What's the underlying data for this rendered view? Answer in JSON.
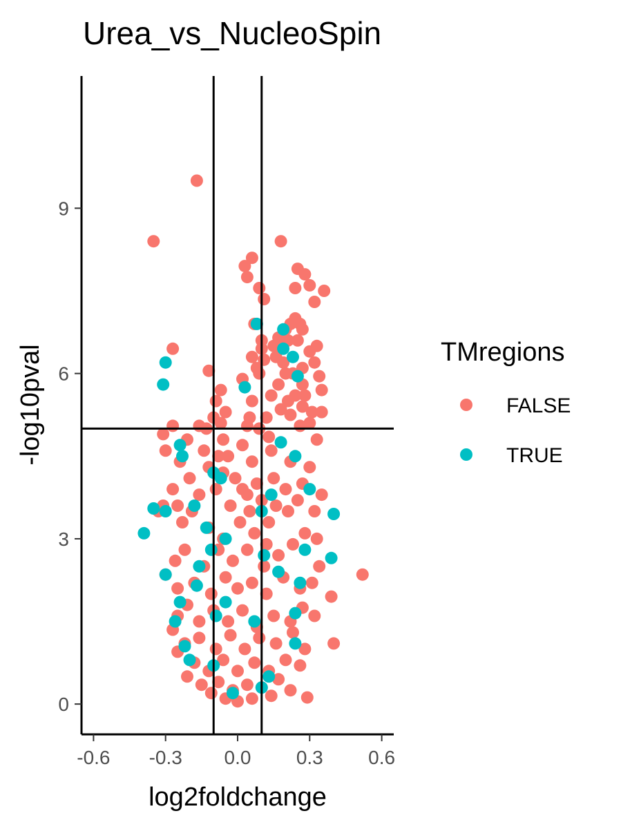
{
  "chart_data": {
    "type": "scatter",
    "title": "Urea_vs_NucleoSpin",
    "xlabel": "log2foldchange",
    "ylabel": "-log10pval",
    "xlim": [
      -0.65,
      0.65
    ],
    "ylim": [
      -0.55,
      11.4
    ],
    "x_ticks": [
      -0.6,
      -0.3,
      0.0,
      0.3,
      0.6
    ],
    "x_tick_labels": [
      "-0.6",
      "-0.3",
      "0.0",
      "0.3",
      "0.6"
    ],
    "y_ticks": [
      0,
      3,
      6,
      9
    ],
    "y_tick_labels": [
      "0",
      "3",
      "6",
      "9"
    ],
    "reference_lines": {
      "vertical": [
        -0.1,
        0.1
      ],
      "horizontal": [
        5
      ]
    },
    "grid": false,
    "legend": {
      "title": "TMregions",
      "placement": "right",
      "entries": [
        {
          "label": "FALSE",
          "color": "#F8766D"
        },
        {
          "label": "TRUE",
          "color": "#00BFC4"
        }
      ]
    },
    "series": [
      {
        "name": "FALSE",
        "color": "#F8766D",
        "points": [
          [
            -0.17,
            9.5
          ],
          [
            -0.35,
            8.4
          ],
          [
            0.18,
            8.4
          ],
          [
            0.06,
            8.1
          ],
          [
            0.03,
            7.95
          ],
          [
            0.04,
            7.75
          ],
          [
            0.25,
            7.9
          ],
          [
            0.28,
            7.8
          ],
          [
            0.3,
            7.6
          ],
          [
            0.36,
            7.5
          ],
          [
            0.24,
            7.55
          ],
          [
            0.09,
            7.55
          ],
          [
            0.11,
            7.35
          ],
          [
            0.32,
            7.3
          ],
          [
            0.22,
            6.9
          ],
          [
            0.27,
            6.8
          ],
          [
            0.2,
            6.8
          ],
          [
            0.25,
            6.6
          ],
          [
            0.17,
            6.65
          ],
          [
            0.3,
            6.4
          ],
          [
            0.33,
            6.5
          ],
          [
            0.15,
            6.5
          ],
          [
            0.19,
            6.2
          ],
          [
            0.1,
            6.45
          ],
          [
            0.06,
            6.3
          ],
          [
            0.11,
            6.25
          ],
          [
            0.08,
            6.1
          ],
          [
            0.23,
            6.0
          ],
          [
            0.27,
            6.1
          ],
          [
            0.32,
            6.2
          ],
          [
            0.34,
            5.95
          ],
          [
            0.35,
            5.7
          ],
          [
            0.28,
            5.6
          ],
          [
            0.21,
            5.5
          ],
          [
            0.14,
            5.6
          ],
          [
            0.09,
            6.0
          ],
          [
            -0.12,
            6.05
          ],
          [
            -0.09,
            5.5
          ],
          [
            -0.07,
            5.7
          ],
          [
            -0.27,
            6.45
          ],
          [
            -0.05,
            5.3
          ],
          [
            -0.07,
            5.1
          ],
          [
            0.31,
            5.3
          ],
          [
            0.35,
            5.3
          ],
          [
            0.27,
            5.4
          ],
          [
            0.05,
            5.2
          ],
          [
            0.02,
            5.9
          ],
          [
            0.17,
            5.8
          ],
          [
            0.06,
            5.5
          ],
          [
            0.22,
            5.25
          ],
          [
            0.12,
            5.2
          ],
          [
            0.26,
            5.05
          ],
          [
            0.04,
            5.05
          ],
          [
            -0.16,
            5.05
          ],
          [
            -0.27,
            5.05
          ],
          [
            -0.31,
            4.9
          ],
          [
            -0.3,
            4.6
          ],
          [
            -0.21,
            4.8
          ],
          [
            -0.14,
            4.6
          ],
          [
            -0.12,
            4.3
          ],
          [
            -0.08,
            4.5
          ],
          [
            -0.06,
            4.2
          ],
          [
            -0.04,
            4.5
          ],
          [
            0.02,
            4.7
          ],
          [
            0.06,
            4.4
          ],
          [
            0.14,
            4.6
          ],
          [
            0.22,
            4.4
          ],
          [
            0.3,
            4.3
          ],
          [
            0.33,
            4.8
          ],
          [
            0.27,
            4.0
          ],
          [
            0.2,
            3.9
          ],
          [
            0.15,
            4.1
          ],
          [
            0.1,
            3.7
          ],
          [
            0.04,
            3.8
          ],
          [
            0.01,
            3.3
          ],
          [
            -0.03,
            3.6
          ],
          [
            -0.09,
            3.9
          ],
          [
            -0.16,
            3.8
          ],
          [
            -0.2,
            4.1
          ],
          [
            -0.25,
            3.6
          ],
          [
            -0.31,
            3.6
          ],
          [
            -0.23,
            3.3
          ],
          [
            -0.19,
            3.5
          ],
          [
            -0.12,
            3.2
          ],
          [
            -0.06,
            3.0
          ],
          [
            0.07,
            3.1
          ],
          [
            0.13,
            3.3
          ],
          [
            0.21,
            3.5
          ],
          [
            0.25,
            3.7
          ],
          [
            0.32,
            3.5
          ],
          [
            0.35,
            3.8
          ],
          [
            0.33,
            3.0
          ],
          [
            0.28,
            3.1
          ],
          [
            0.23,
            2.9
          ],
          [
            0.17,
            2.7
          ],
          [
            0.11,
            2.5
          ],
          [
            0.04,
            2.8
          ],
          [
            -0.02,
            2.6
          ],
          [
            -0.08,
            2.8
          ],
          [
            -0.14,
            2.5
          ],
          [
            -0.22,
            2.8
          ],
          [
            -0.26,
            2.6
          ],
          [
            -0.3,
            2.35
          ],
          [
            -0.25,
            2.1
          ],
          [
            -0.18,
            2.2
          ],
          [
            -0.11,
            2.0
          ],
          [
            -0.05,
            2.3
          ],
          [
            0.0,
            2.1
          ],
          [
            0.06,
            2.2
          ],
          [
            0.12,
            2.0
          ],
          [
            0.19,
            2.3
          ],
          [
            0.26,
            2.1
          ],
          [
            0.31,
            2.2
          ],
          [
            0.34,
            2.5
          ],
          [
            0.52,
            2.35
          ],
          [
            0.39,
            1.95
          ],
          [
            0.32,
            1.6
          ],
          [
            0.27,
            1.75
          ],
          [
            0.22,
            1.5
          ],
          [
            0.15,
            1.6
          ],
          [
            0.08,
            1.4
          ],
          [
            0.02,
            1.7
          ],
          [
            -0.04,
            1.5
          ],
          [
            -0.1,
            1.7
          ],
          [
            -0.16,
            1.5
          ],
          [
            -0.21,
            1.8
          ],
          [
            -0.25,
            1.6
          ],
          [
            -0.27,
            1.35
          ],
          [
            -0.22,
            1.1
          ],
          [
            -0.16,
            1.2
          ],
          [
            -0.09,
            1.0
          ],
          [
            -0.03,
            1.25
          ],
          [
            0.03,
            1.0
          ],
          [
            0.09,
            1.2
          ],
          [
            0.16,
            1.1
          ],
          [
            0.23,
            1.3
          ],
          [
            0.28,
            1.0
          ],
          [
            0.4,
            1.1
          ],
          [
            0.26,
            0.7
          ],
          [
            0.2,
            0.8
          ],
          [
            0.13,
            0.6
          ],
          [
            0.07,
            0.75
          ],
          [
            0.0,
            0.6
          ],
          [
            -0.06,
            0.8
          ],
          [
            -0.12,
            0.6
          ],
          [
            -0.18,
            0.75
          ],
          [
            -0.21,
            0.5
          ],
          [
            -0.25,
            0.95
          ],
          [
            -0.15,
            0.35
          ],
          [
            -0.08,
            0.4
          ],
          [
            -0.02,
            0.25
          ],
          [
            0.04,
            0.35
          ],
          [
            0.1,
            0.3
          ],
          [
            0.17,
            0.45
          ],
          [
            0.22,
            0.25
          ],
          [
            0.29,
            0.12
          ],
          [
            0.14,
            0.15
          ],
          [
            0.0,
            0.05
          ],
          [
            0.06,
            0.1
          ],
          [
            -0.05,
            0.1
          ],
          [
            -0.11,
            0.2
          ],
          [
            0.02,
            3.9
          ],
          [
            0.08,
            4.0
          ],
          [
            0.16,
            3.6
          ],
          [
            0.12,
            2.9
          ],
          [
            -0.01,
            4.1
          ],
          [
            0.05,
            3.5
          ],
          [
            0.09,
            5.0
          ],
          [
            0.18,
            5.35
          ],
          [
            0.24,
            5.6
          ],
          [
            0.13,
            4.85
          ],
          [
            0.27,
            5.8
          ],
          [
            0.3,
            5.1
          ],
          [
            0.2,
            6.0
          ],
          [
            0.16,
            6.3
          ],
          [
            0.21,
            6.6
          ],
          [
            0.26,
            6.9
          ],
          [
            0.24,
            7.0
          ],
          [
            0.07,
            6.9
          ],
          [
            0.1,
            6.6
          ],
          [
            -0.06,
            4.8
          ],
          [
            -0.1,
            5.2
          ],
          [
            -0.13,
            5.0
          ],
          [
            -0.24,
            4.4
          ],
          [
            -0.27,
            3.9
          ],
          [
            -0.33,
            3.5
          ]
        ]
      },
      {
        "name": "TRUE",
        "color": "#00BFC4",
        "points": [
          [
            0.08,
            6.9
          ],
          [
            0.19,
            6.8
          ],
          [
            -0.3,
            6.2
          ],
          [
            -0.31,
            5.8
          ],
          [
            0.03,
            5.75
          ],
          [
            0.19,
            6.45
          ],
          [
            0.23,
            6.3
          ],
          [
            0.25,
            5.95
          ],
          [
            0.18,
            4.75
          ],
          [
            -0.24,
            4.7
          ],
          [
            -0.23,
            4.5
          ],
          [
            0.24,
            4.5
          ],
          [
            0.3,
            3.9
          ],
          [
            -0.1,
            4.2
          ],
          [
            -0.07,
            4.1
          ],
          [
            0.4,
            3.45
          ],
          [
            -0.35,
            3.55
          ],
          [
            -0.39,
            3.1
          ],
          [
            -0.3,
            3.5
          ],
          [
            -0.18,
            3.6
          ],
          [
            -0.13,
            3.2
          ],
          [
            0.1,
            3.5
          ],
          [
            0.14,
            3.8
          ],
          [
            0.28,
            2.8
          ],
          [
            0.39,
            2.65
          ],
          [
            -0.3,
            2.35
          ],
          [
            -0.16,
            2.5
          ],
          [
            -0.11,
            2.8
          ],
          [
            -0.05,
            3.0
          ],
          [
            0.11,
            2.7
          ],
          [
            0.17,
            2.4
          ],
          [
            0.26,
            2.2
          ],
          [
            -0.17,
            2.15
          ],
          [
            -0.24,
            1.85
          ],
          [
            -0.09,
            1.6
          ],
          [
            -0.05,
            1.85
          ],
          [
            0.07,
            1.5
          ],
          [
            0.24,
            1.65
          ],
          [
            -0.26,
            1.5
          ],
          [
            -0.22,
            1.05
          ],
          [
            0.24,
            1.1
          ],
          [
            -0.2,
            0.8
          ],
          [
            -0.1,
            0.7
          ],
          [
            0.13,
            0.5
          ],
          [
            -0.02,
            0.2
          ],
          [
            0.1,
            0.3
          ]
        ]
      }
    ]
  }
}
